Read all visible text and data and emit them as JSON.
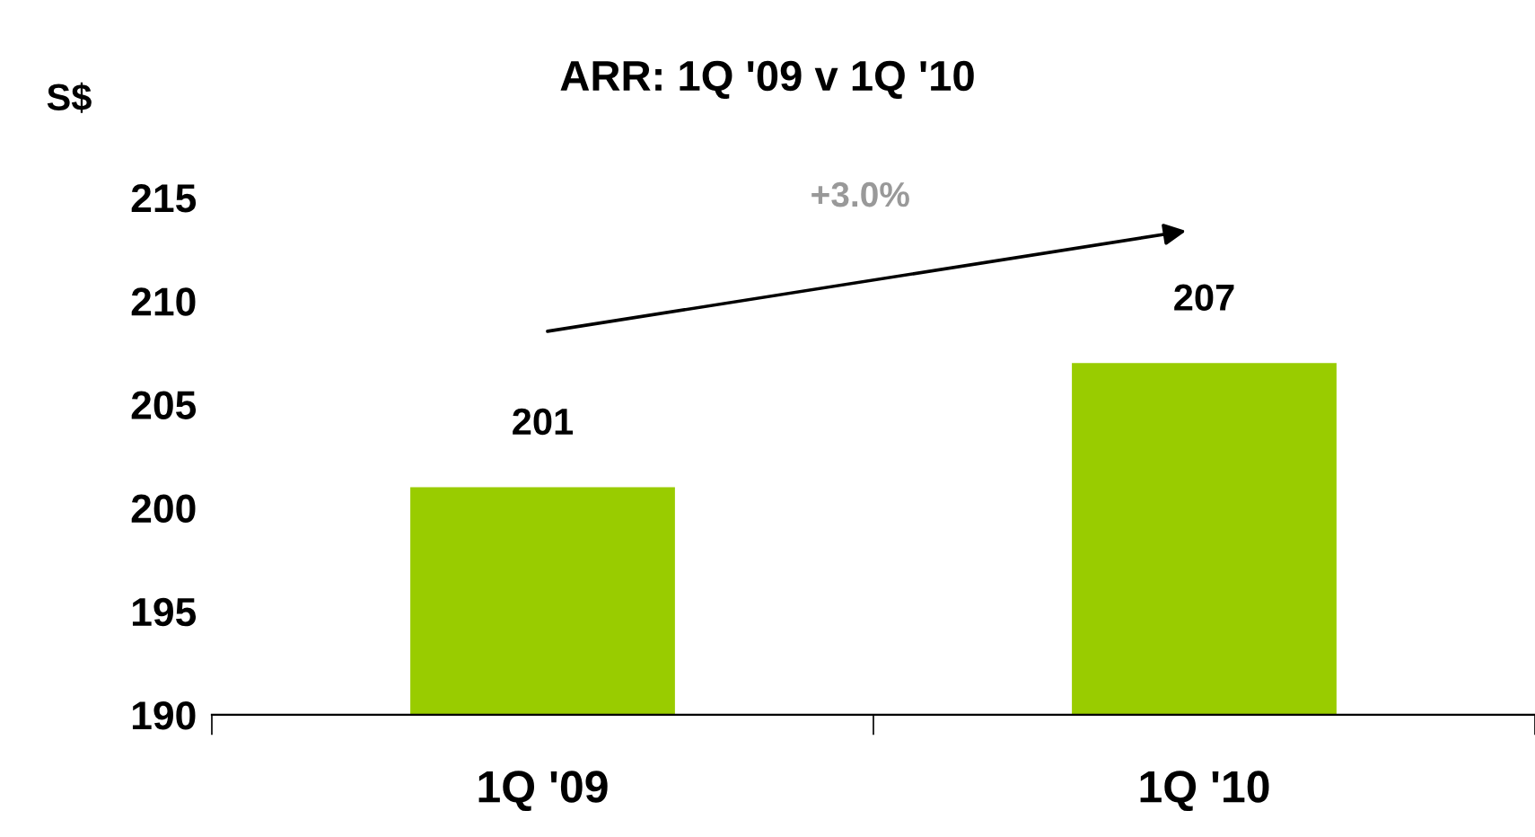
{
  "chart_data": {
    "type": "bar",
    "title": "ARR: 1Q '09 v 1Q '10",
    "ylabel": "S$",
    "categories": [
      "1Q '09",
      "1Q '10"
    ],
    "values": [
      201,
      207
    ],
    "color": "#99cc00",
    "ylim": [
      190,
      215
    ],
    "yticks": [
      190,
      195,
      200,
      205,
      210,
      215
    ],
    "data_labels": true,
    "grid": false,
    "legend": false,
    "annotations": [
      "+3.0%"
    ]
  }
}
